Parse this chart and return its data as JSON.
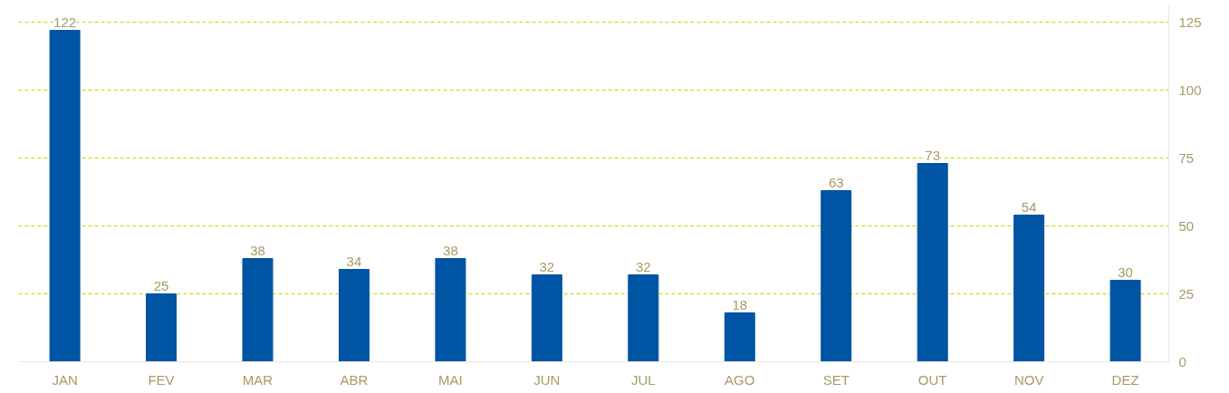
{
  "chart_data": {
    "type": "bar",
    "categories": [
      "JAN",
      "FEV",
      "MAR",
      "ABR",
      "MAI",
      "JUN",
      "JUL",
      "AGO",
      "SET",
      "OUT",
      "NOV",
      "DEZ"
    ],
    "values": [
      122,
      25,
      38,
      34,
      38,
      32,
      32,
      18,
      63,
      73,
      54,
      30
    ],
    "color": "#0054a4",
    "ylim": [
      0,
      131
    ],
    "yticks": [
      0,
      25,
      50,
      75,
      100,
      125
    ],
    "grid": "y",
    "data_labels": true
  }
}
